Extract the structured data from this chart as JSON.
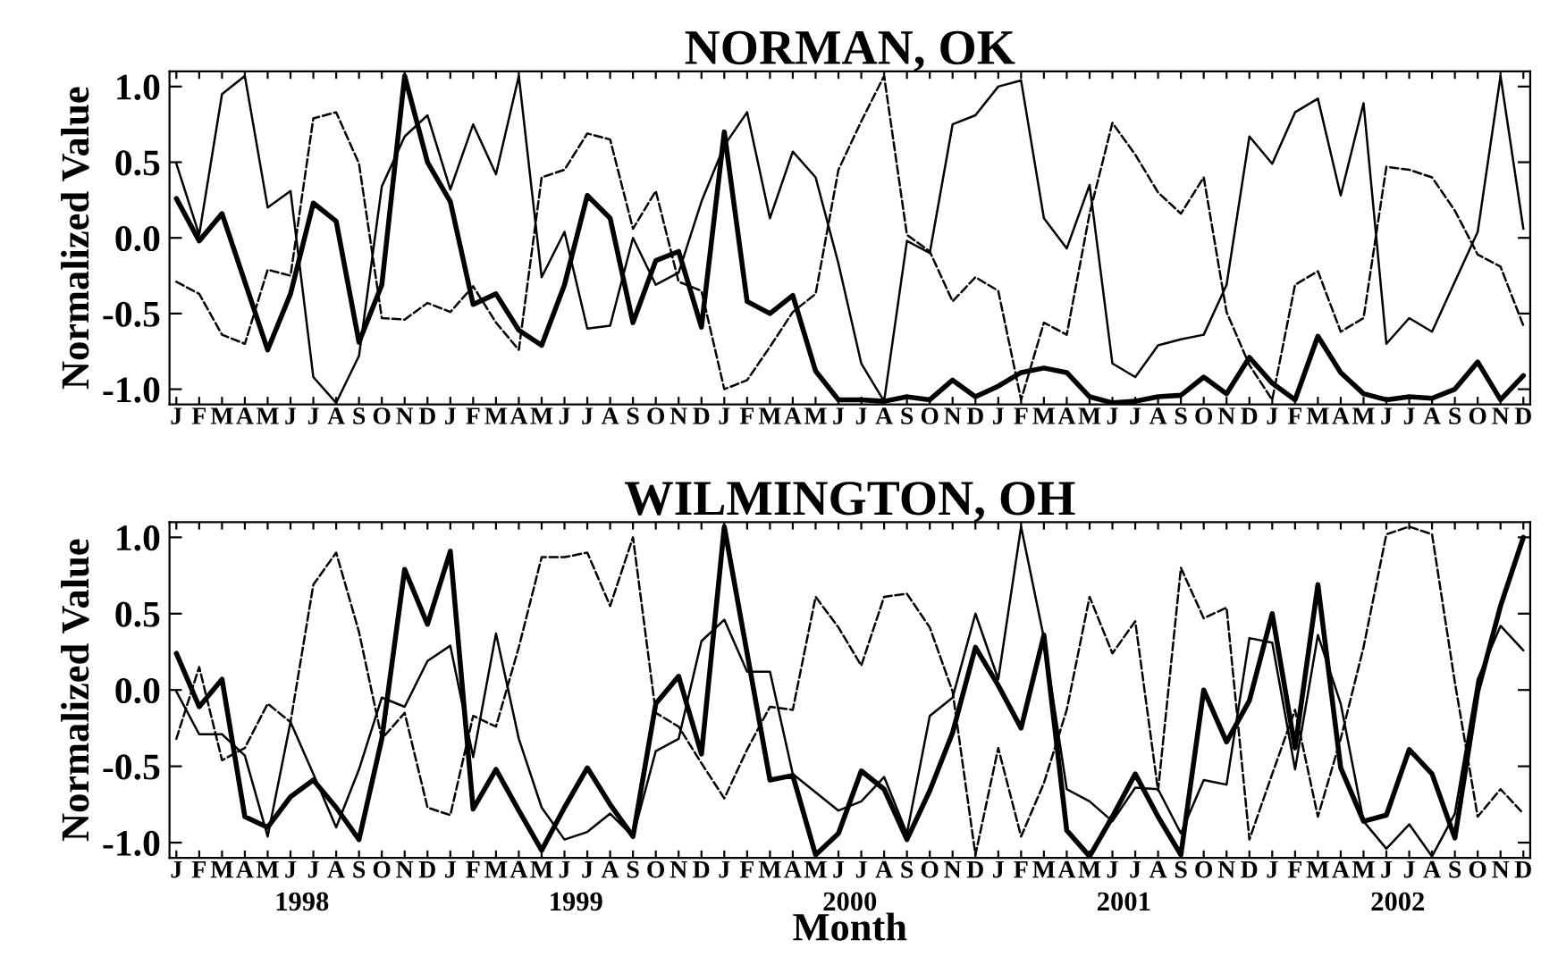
{
  "chart_data": [
    {
      "type": "line",
      "title": "NORMAN, OK",
      "ylabel": "Normalized Value",
      "categories": [
        "J",
        "F",
        "M",
        "A",
        "M",
        "J",
        "J",
        "A",
        "S",
        "O",
        "N",
        "D",
        "J",
        "F",
        "M",
        "A",
        "M",
        "J",
        "J",
        "A",
        "S",
        "O",
        "N",
        "D",
        "J",
        "F",
        "M",
        "A",
        "M",
        "J",
        "J",
        "A",
        "S",
        "O",
        "N",
        "D",
        "J",
        "F",
        "M",
        "A",
        "M",
        "J",
        "J",
        "A",
        "S",
        "O",
        "N",
        "D",
        "J",
        "F",
        "M",
        "A",
        "M",
        "J",
        "J",
        "A",
        "S",
        "O",
        "N",
        "D"
      ],
      "ylim": [
        -1.1,
        1.1
      ],
      "yticks": [
        {
          "value": -1.0,
          "label": "-1.0"
        },
        {
          "value": -0.5,
          "label": "-0.5"
        },
        {
          "value": 0.0,
          "label": "0.0"
        },
        {
          "value": 0.5,
          "label": "0.5"
        },
        {
          "value": 1.0,
          "label": "1.0"
        }
      ],
      "series": [
        {
          "color": "#000000",
          "line_style": "solid",
          "values": [
            0.26,
            -0.02,
            0.16,
            -0.29,
            -0.74,
            -0.37,
            0.23,
            0.11,
            -0.69,
            -0.31,
            1.07,
            0.5,
            0.24,
            -0.44,
            -0.37,
            -0.61,
            -0.71,
            -0.31,
            0.28,
            0.13,
            -0.56,
            -0.15,
            -0.09,
            -0.59,
            0.7,
            -0.42,
            -0.5,
            -0.38,
            -0.88,
            -1.07,
            -1.07,
            -1.08,
            -1.05,
            -1.07,
            -0.94,
            -1.05,
            -0.98,
            -0.89,
            -0.86,
            -0.89,
            -1.05,
            -1.09,
            -1.08,
            -1.05,
            -1.04,
            -0.92,
            -1.03,
            -0.79,
            -0.96,
            -1.07,
            -0.65,
            -0.89,
            -1.03,
            -1.07,
            -1.05,
            -1.06,
            -1.0,
            -0.82,
            -1.07,
            -0.91
          ]
        },
        {
          "color": "#000000",
          "line_style": "solid",
          "values": [
            0.49,
            0.02,
            0.95,
            1.07,
            0.2,
            0.31,
            -0.92,
            -1.09,
            -0.78,
            0.34,
            0.67,
            0.81,
            0.32,
            0.75,
            0.42,
            1.07,
            -0.26,
            0.04,
            -0.6,
            -0.58,
            0.0,
            -0.31,
            -0.23,
            0.24,
            0.61,
            0.83,
            0.13,
            0.57,
            0.4,
            -0.17,
            -0.83,
            -1.08,
            -0.02,
            -0.1,
            0.75,
            0.81,
            1.0,
            1.04,
            0.13,
            -0.07,
            0.35,
            -0.83,
            -0.92,
            -0.71,
            -0.67,
            -0.64,
            -0.31,
            0.67,
            0.49,
            0.83,
            0.92,
            0.28,
            0.89,
            -0.7,
            -0.53,
            -0.62,
            -0.29,
            0.04,
            1.07,
            0.06
          ]
        },
        {
          "color": "#000000",
          "line_style": "dashed",
          "values": [
            -0.29,
            -0.37,
            -0.64,
            -0.7,
            -0.21,
            -0.25,
            0.79,
            0.83,
            0.49,
            -0.53,
            -0.54,
            -0.43,
            -0.49,
            -0.32,
            -0.56,
            -0.74,
            0.4,
            0.45,
            0.69,
            0.65,
            0.06,
            0.31,
            -0.29,
            -0.35,
            -1.0,
            -0.94,
            -0.72,
            -0.49,
            -0.37,
            0.45,
            0.77,
            1.07,
            0.02,
            -0.09,
            -0.42,
            -0.26,
            -0.35,
            -1.07,
            -0.56,
            -0.64,
            0.16,
            0.76,
            0.55,
            0.3,
            0.16,
            0.4,
            -0.49,
            -0.84,
            -1.07,
            -0.31,
            -0.22,
            -0.62,
            -0.53,
            0.47,
            0.45,
            0.4,
            0.18,
            -0.11,
            -0.19,
            -0.58
          ]
        }
      ]
    },
    {
      "type": "line",
      "title": "WILMINGTON, OH",
      "ylabel": "Normalized Value",
      "xlabel": "Month",
      "annotations": [
        "1998",
        "1999",
        "2000",
        "2001",
        "2002"
      ],
      "categories": [
        "J",
        "F",
        "M",
        "A",
        "M",
        "J",
        "J",
        "A",
        "S",
        "O",
        "N",
        "D",
        "J",
        "F",
        "M",
        "A",
        "M",
        "J",
        "J",
        "A",
        "S",
        "O",
        "N",
        "D",
        "J",
        "F",
        "M",
        "A",
        "M",
        "J",
        "J",
        "A",
        "S",
        "O",
        "N",
        "D",
        "J",
        "F",
        "M",
        "A",
        "M",
        "J",
        "J",
        "A",
        "S",
        "O",
        "N",
        "D",
        "J",
        "F",
        "M",
        "A",
        "M",
        "J",
        "J",
        "A",
        "S",
        "O",
        "N",
        "D"
      ],
      "ylim": [
        -1.1,
        1.1
      ],
      "yticks": [
        {
          "value": -1.0,
          "label": "-1.0"
        },
        {
          "value": -0.5,
          "label": "-0.5"
        },
        {
          "value": 0.0,
          "label": "0.0"
        },
        {
          "value": 0.5,
          "label": "0.5"
        },
        {
          "value": 1.0,
          "label": "1.0"
        }
      ],
      "series": [
        {
          "color": "#000000",
          "line_style": "solid",
          "values": [
            0.24,
            -0.11,
            0.07,
            -0.83,
            -0.9,
            -0.7,
            -0.59,
            -0.77,
            -0.98,
            -0.32,
            0.79,
            0.43,
            0.91,
            -0.78,
            -0.52,
            -0.79,
            -1.05,
            -0.77,
            -0.51,
            -0.75,
            -0.96,
            -0.09,
            0.09,
            -0.42,
            1.07,
            0.24,
            -0.59,
            -0.56,
            -1.08,
            -0.94,
            -0.53,
            -0.65,
            -0.98,
            -0.66,
            -0.28,
            0.28,
            0.03,
            -0.25,
            0.36,
            -0.92,
            -1.09,
            -0.83,
            -0.55,
            -0.83,
            -1.08,
            0.0,
            -0.34,
            -0.07,
            0.5,
            -0.38,
            0.69,
            -0.51,
            -0.86,
            -0.82,
            -0.39,
            -0.55,
            -0.97,
            -0.01,
            0.55,
            1.0
          ]
        },
        {
          "color": "#000000",
          "line_style": "solid",
          "values": [
            -0.01,
            -0.29,
            -0.29,
            -0.43,
            -0.96,
            -0.21,
            -0.55,
            -0.9,
            -0.52,
            -0.05,
            -0.11,
            0.19,
            0.29,
            -0.44,
            0.37,
            -0.32,
            -0.77,
            -0.98,
            -0.93,
            -0.81,
            -0.96,
            -0.4,
            -0.32,
            0.32,
            0.46,
            0.12,
            0.12,
            -0.55,
            -0.67,
            -0.79,
            -0.73,
            -0.57,
            -0.94,
            -0.17,
            -0.05,
            0.5,
            0.07,
            1.07,
            0.34,
            -0.65,
            -0.73,
            -0.86,
            -0.64,
            -0.65,
            -0.94,
            -0.59,
            -0.62,
            0.34,
            0.31,
            -0.52,
            0.36,
            -0.09,
            -0.86,
            -1.04,
            -0.88,
            -1.09,
            -0.81,
            0.07,
            0.42,
            0.26
          ]
        },
        {
          "color": "#000000",
          "line_style": "dashed",
          "values": [
            -0.32,
            0.15,
            -0.46,
            -0.38,
            -0.09,
            -0.21,
            0.69,
            0.9,
            0.38,
            -0.32,
            -0.15,
            -0.77,
            -0.82,
            -0.17,
            -0.24,
            0.28,
            0.87,
            0.87,
            0.9,
            0.55,
            1.0,
            -0.15,
            -0.24,
            -0.48,
            -0.71,
            -0.39,
            -0.11,
            -0.13,
            0.61,
            0.41,
            0.16,
            0.61,
            0.63,
            0.41,
            -0.01,
            -1.08,
            -0.38,
            -0.96,
            -0.61,
            -0.13,
            0.61,
            0.24,
            0.45,
            -0.66,
            0.8,
            0.47,
            0.54,
            -0.98,
            -0.55,
            -0.13,
            -0.83,
            -0.32,
            0.28,
            1.02,
            1.07,
            1.02,
            0.05,
            -0.83,
            -0.65,
            -0.81
          ]
        }
      ]
    }
  ]
}
